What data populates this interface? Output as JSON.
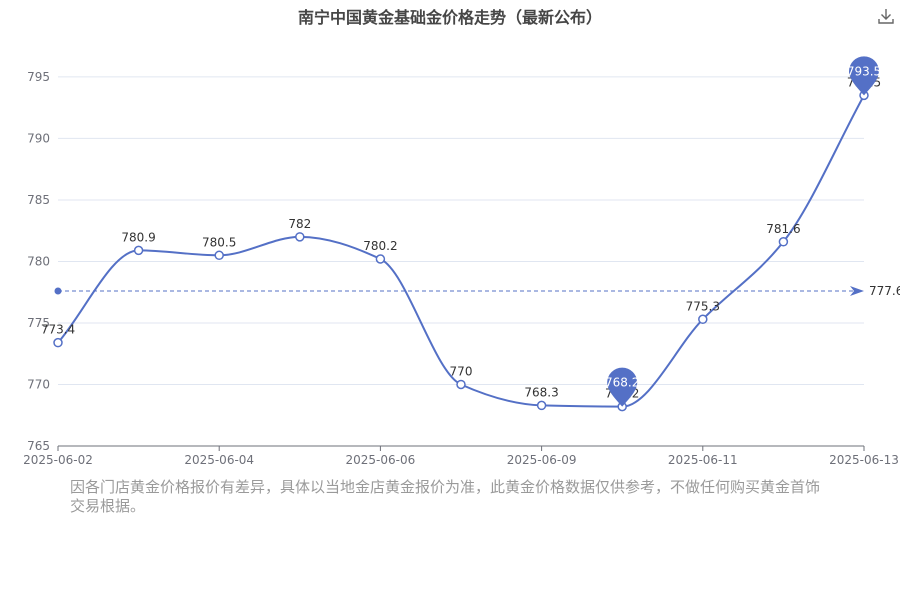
{
  "header": {
    "title": "南宁中国黄金基础金价格走势（最新公布）"
  },
  "toolbar": {
    "download_icon": "download-icon"
  },
  "chart_data": {
    "type": "line",
    "title": "南宁中国黄金基础金价格走势（最新公布）",
    "xlabel": "",
    "ylabel": "",
    "x_ticks": [
      "2025-06-02",
      "2025-06-04",
      "2025-06-06",
      "2025-06-09",
      "2025-06-11",
      "2025-06-13"
    ],
    "y_ticks": [
      "765",
      "770",
      "775",
      "780",
      "785",
      "790",
      "795"
    ],
    "ylim": [
      765,
      798
    ],
    "grid": true,
    "smooth": true,
    "series": [
      {
        "color": "#5470c6",
        "points": [
          {
            "x": "2025-06-02",
            "y": 773.4
          },
          {
            "x": "2025-06-03",
            "y": 780.9
          },
          {
            "x": "2025-06-04",
            "y": 780.5
          },
          {
            "x": "2025-06-05",
            "y": 782
          },
          {
            "x": "2025-06-06",
            "y": 780.2
          },
          {
            "x": "2025-06-07",
            "y": 770
          },
          {
            "x": "2025-06-09",
            "y": 768.3
          },
          {
            "x": "2025-06-10",
            "y": 768.2
          },
          {
            "x": "2025-06-11",
            "y": 775.3
          },
          {
            "x": "2025-06-12",
            "y": 781.6
          },
          {
            "x": "2025-06-13",
            "y": 793.5
          }
        ],
        "labels": [
          "773.4",
          "780.9",
          "780.5",
          "782",
          "780.2",
          "770",
          "768.3",
          "768.2",
          "775.3",
          "781.6",
          "793.5"
        ]
      }
    ],
    "mark_points": [
      {
        "type": "min",
        "label": "768.2",
        "index": 7
      },
      {
        "type": "max",
        "label": "793.5",
        "index": 10
      }
    ],
    "mark_line": {
      "type": "average",
      "value": 777.6,
      "label": "777.6"
    }
  },
  "footer": {
    "note": "因各门店黄金价格报价有差异，具体以当地金店黄金报价为准，此黄金价格数据仅供参考，不做任何购买黄金首饰交易根据。"
  }
}
